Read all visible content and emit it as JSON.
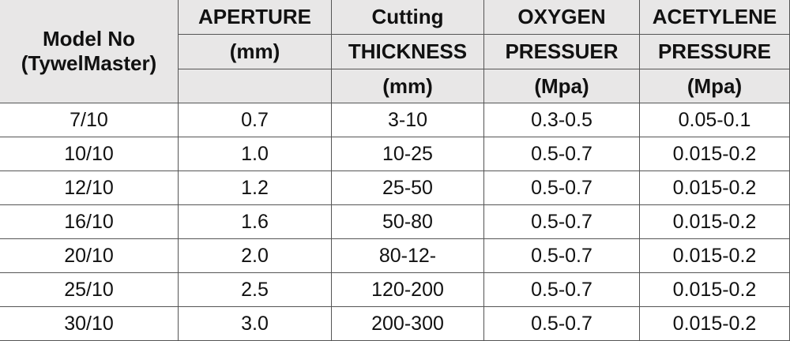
{
  "table": {
    "header": [
      [
        "Model No",
        "(TywelMaster)"
      ],
      [
        "APERTURE",
        "(mm)"
      ],
      [
        "Cutting",
        "THICKNESS",
        "(mm)"
      ],
      [
        "OXYGEN",
        "PRESSUER",
        "(Mpa)"
      ],
      [
        "ACETYLENE",
        "PRESSURE",
        "(Mpa)"
      ]
    ],
    "rows": [
      [
        "7/10",
        "0.7",
        "3-10",
        "0.3-0.5",
        "0.05-0.1"
      ],
      [
        "10/10",
        "1.0",
        "10-25",
        "0.5-0.7",
        "0.015-0.2"
      ],
      [
        "12/10",
        "1.2",
        "25-50",
        "0.5-0.7",
        "0.015-0.2"
      ],
      [
        "16/10",
        "1.6",
        "50-80",
        "0.5-0.7",
        "0.015-0.2"
      ],
      [
        "20/10",
        "2.0",
        "80-12-",
        "0.5-0.7",
        "0.015-0.2"
      ],
      [
        "25/10",
        "2.5",
        "120-200",
        "0.5-0.7",
        "0.015-0.2"
      ],
      [
        "30/10",
        "3.0",
        "200-300",
        "0.5-0.7",
        "0.015-0.2"
      ]
    ]
  }
}
